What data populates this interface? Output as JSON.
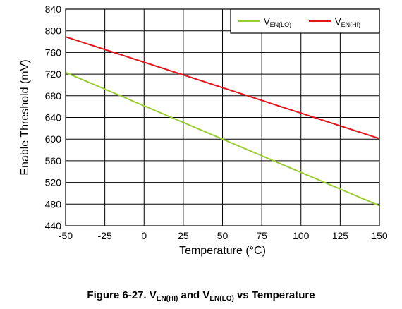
{
  "chart_data": {
    "type": "line",
    "xlabel": "Temperature (°C)",
    "ylabel": "Enable Threshold (mV)",
    "xlim": [
      -50,
      150
    ],
    "ylim": [
      440,
      840
    ],
    "x_ticks": [
      "-50",
      "-25",
      "0",
      "25",
      "50",
      "75",
      "100",
      "125",
      "150"
    ],
    "y_ticks": [
      "440",
      "480",
      "520",
      "560",
      "600",
      "640",
      "680",
      "720",
      "760",
      "800",
      "840"
    ],
    "grid": true,
    "legend_position": "top-right",
    "series": [
      {
        "name": "VEN(LO)",
        "label_main": "V",
        "label_sub": "EN(LO)",
        "color": "#9acd32",
        "x": [
          -50,
          150
        ],
        "y": [
          723,
          477
        ]
      },
      {
        "name": "VEN(HI)",
        "label_main": "V",
        "label_sub": "EN(HI)",
        "color": "#e8141c",
        "x": [
          -50,
          150
        ],
        "y": [
          789,
          601
        ]
      }
    ]
  },
  "caption": {
    "prefix": "Figure 6-27. V",
    "sub1": "EN(HI)",
    "mid": " and V",
    "sub2": "EN(LO)",
    "suffix": " vs Temperature"
  }
}
